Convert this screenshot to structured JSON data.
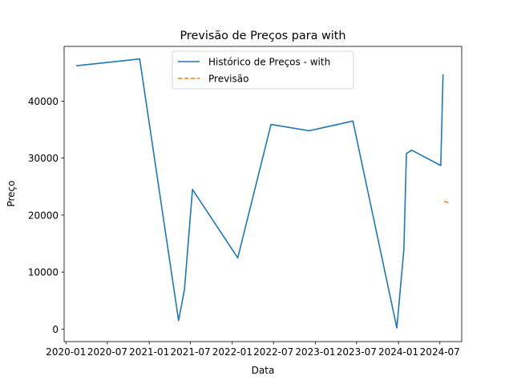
{
  "chart_data": {
    "type": "line",
    "title": "Previsão de Preços para with",
    "xlabel": "Data",
    "ylabel": "Preço",
    "xlim": [
      "2019-12-24",
      "2024-10-05"
    ],
    "ylim": [
      -2200,
      49600
    ],
    "x_ticks": [
      "2020-01",
      "2020-07",
      "2021-01",
      "2021-07",
      "2022-01",
      "2022-07",
      "2023-01",
      "2023-07",
      "2024-01",
      "2024-07"
    ],
    "y_ticks": [
      0,
      10000,
      20000,
      30000,
      40000
    ],
    "grid": false,
    "legend": "top-center",
    "series": [
      {
        "name": "Histórico de Preços - with",
        "color": "#1f77b4",
        "style": "solid",
        "points": [
          [
            "2020-02-15",
            46200
          ],
          [
            "2020-11-20",
            47400
          ],
          [
            "2021-05-10",
            1500
          ],
          [
            "2021-06-05",
            7000
          ],
          [
            "2021-07-10",
            24500
          ],
          [
            "2022-01-25",
            12500
          ],
          [
            "2022-06-20",
            35900
          ],
          [
            "2022-12-05",
            34800
          ],
          [
            "2023-06-15",
            36500
          ],
          [
            "2023-12-25",
            200
          ],
          [
            "2024-01-25",
            14000
          ],
          [
            "2024-02-05",
            30800
          ],
          [
            "2024-02-28",
            31400
          ],
          [
            "2024-07-05",
            28700
          ],
          [
            "2024-07-15",
            44700
          ]
        ]
      },
      {
        "name": "Previsão",
        "color": "#ff7f0e",
        "style": "dashed",
        "points": [
          [
            "2024-07-20",
            22400
          ],
          [
            "2024-08-15",
            22100
          ]
        ]
      }
    ]
  }
}
